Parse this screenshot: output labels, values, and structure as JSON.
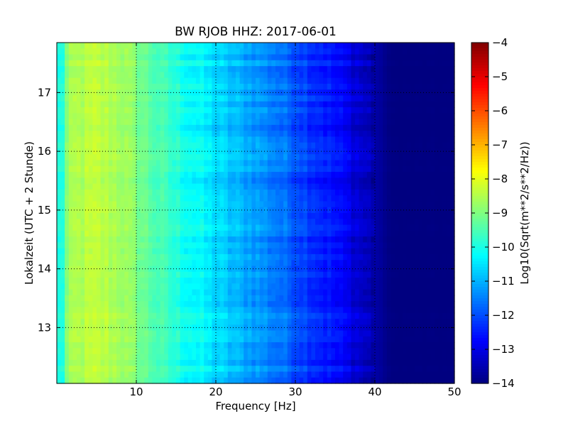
{
  "chart_data": {
    "type": "heatmap",
    "title": "BW RJOB HHZ: 2017-06-01",
    "xlabel": "Frequency [Hz]",
    "ylabel": "Lokalzeit (UTC + 2 Stunde)",
    "xlim": [
      0,
      50
    ],
    "ylim": [
      17.85,
      12.05
    ],
    "y_inverted": true,
    "x_ticks": [
      10,
      20,
      30,
      40,
      50
    ],
    "y_ticks": [
      13,
      14,
      15,
      16,
      17
    ],
    "grid": true,
    "colorscale": "jet",
    "colorbar": {
      "label": "Log10(Sqrt(m**2/s**2/Hz))",
      "range": [
        -14,
        -4
      ],
      "ticks": [
        -4,
        -5,
        -6,
        -7,
        -8,
        -9,
        -10,
        -11,
        -12,
        -13,
        -14
      ]
    },
    "profile_hz": [
      0.5,
      2,
      5,
      8,
      10,
      12,
      15,
      18,
      20,
      22,
      25,
      28,
      30,
      32,
      34,
      36,
      38,
      40,
      42,
      45,
      50
    ],
    "profile_log10": [
      -9.4,
      -8.6,
      -8.4,
      -8.6,
      -9.0,
      -9.4,
      -9.9,
      -10.3,
      -10.6,
      -10.9,
      -11.2,
      -11.6,
      -11.9,
      -12.2,
      -12.5,
      -12.8,
      -13.2,
      -13.6,
      -14.0,
      -14.0,
      -14.0
    ],
    "lines": [
      {
        "frequency_hz": 5.0,
        "from_hour": 12.05,
        "to_hour": 14.9,
        "log10": -7.6
      },
      {
        "frequency_hz": 34.3,
        "from_hour": 12.05,
        "to_hour": 17.85,
        "log10": -12.0
      },
      {
        "frequency_hz": 21.4,
        "from_hour": 16.2,
        "to_hour": 17.4,
        "log10": -10.5
      },
      {
        "frequency_hz": 20.0,
        "from_hour": 12.05,
        "to_hour": 17.85,
        "log10": -10.4
      }
    ]
  }
}
